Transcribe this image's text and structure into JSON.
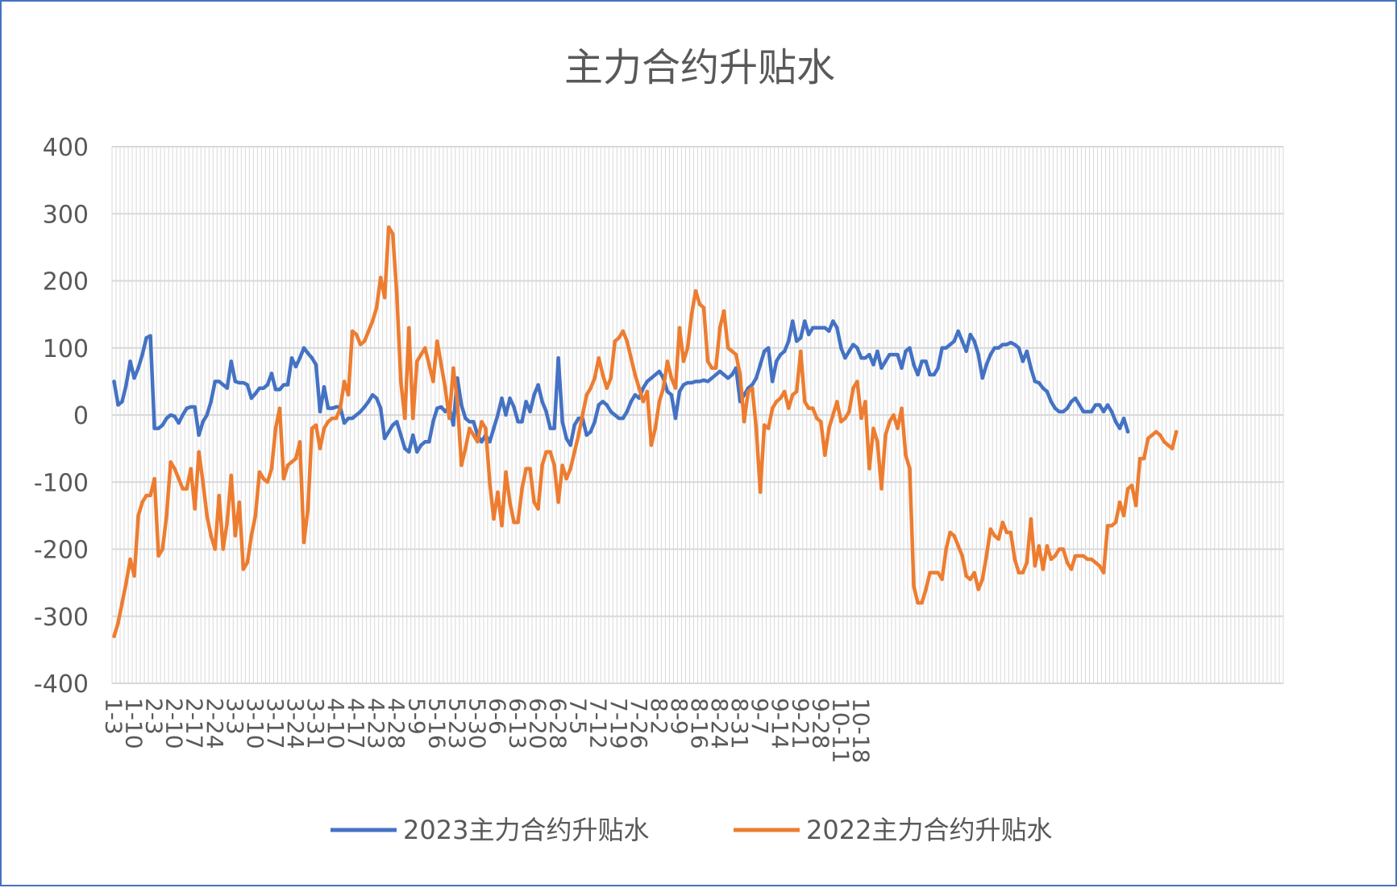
{
  "chart_data": {
    "type": "line",
    "title": "主力合约升贴水",
    "xlabel": "",
    "ylabel": "",
    "ylim": [
      -400,
      400
    ],
    "yticks": [
      400,
      300,
      200,
      100,
      0,
      -100,
      -200,
      -300,
      -400
    ],
    "grid": true,
    "legend_position": "bottom",
    "n_slots": 290,
    "x_tick_labels": [
      "1-3",
      "1-10",
      "2-3",
      "2-10",
      "2-17",
      "2-24",
      "3-3",
      "3-10",
      "3-17",
      "3-24",
      "3-31",
      "4-10",
      "4-17",
      "4-23",
      "4-28",
      "5-9",
      "5-16",
      "5-23",
      "5-30",
      "6-6",
      "6-13",
      "6-20",
      "6-28",
      "7-5",
      "7-12",
      "7-19",
      "7-26",
      "8-2",
      "8-9",
      "8-16",
      "8-24",
      "8-31",
      "9-7",
      "9-14",
      "9-21",
      "9-28",
      "10-11",
      "10-18"
    ],
    "series": [
      {
        "name": "2023主力合约升贴水",
        "color": "#4472c4",
        "values": [
          50,
          15,
          20,
          45,
          80,
          55,
          70,
          90,
          115,
          118,
          -20,
          -20,
          -15,
          -5,
          0,
          -2,
          -12,
          0,
          10,
          12,
          12,
          -30,
          -10,
          0,
          20,
          50,
          50,
          45,
          40,
          80,
          50,
          48,
          48,
          45,
          25,
          32,
          40,
          40,
          45,
          62,
          38,
          38,
          45,
          45,
          85,
          72,
          85,
          100,
          92,
          85,
          75,
          5,
          42,
          10,
          10,
          12,
          12,
          -12,
          -5,
          -5,
          0,
          5,
          12,
          20,
          30,
          25,
          10,
          -35,
          -25,
          -15,
          -10,
          -30,
          -50,
          -55,
          -30,
          -55,
          -45,
          -40,
          -40,
          -10,
          10,
          12,
          5,
          12,
          -15,
          55,
          15,
          -5,
          -10,
          -10,
          -30,
          -40,
          -30,
          -40,
          -20,
          0,
          25,
          0,
          25,
          12,
          -10,
          -10,
          20,
          5,
          30,
          45,
          20,
          5,
          -20,
          -20,
          85,
          -10,
          -35,
          -45,
          -15,
          -5,
          -5,
          -30,
          -25,
          -10,
          15,
          20,
          15,
          5,
          0,
          -5,
          -5,
          5,
          20,
          30,
          25,
          40,
          50,
          55,
          60,
          65,
          55,
          35,
          30,
          -5,
          35,
          45,
          48,
          48,
          50,
          50,
          52,
          50,
          55,
          60,
          65,
          60,
          55,
          60,
          70,
          20,
          30,
          40,
          45,
          55,
          75,
          95,
          100,
          50,
          80,
          90,
          95,
          110,
          140,
          110,
          115,
          140,
          120,
          130,
          130,
          130,
          130,
          125,
          140,
          130,
          100,
          85,
          95,
          105,
          100,
          85,
          85,
          90,
          75,
          95,
          70,
          80,
          90,
          90,
          90,
          70,
          95,
          100,
          75,
          60,
          80,
          80,
          60,
          60,
          70,
          100,
          100,
          105,
          110,
          125,
          110,
          95,
          120,
          110,
          90,
          55,
          75,
          90,
          100,
          100,
          105,
          105,
          108,
          105,
          100,
          80,
          95,
          70,
          50,
          48,
          40,
          35,
          20,
          10,
          5,
          5,
          10,
          20,
          25,
          15,
          5,
          5,
          5,
          15,
          15,
          5,
          15,
          5,
          -10,
          -20,
          -5,
          -25
        ]
      },
      {
        "name": "2022主力合约升贴水",
        "color": "#ed7d31",
        "values": [
          -330,
          -310,
          -280,
          -250,
          -215,
          -240,
          -150,
          -130,
          -120,
          -120,
          -95,
          -210,
          -200,
          -150,
          -70,
          -80,
          -95,
          -110,
          -110,
          -80,
          -140,
          -55,
          -100,
          -150,
          -180,
          -200,
          -120,
          -200,
          -160,
          -90,
          -180,
          -130,
          -230,
          -220,
          -180,
          -150,
          -85,
          -95,
          -100,
          -80,
          -20,
          10,
          -95,
          -75,
          -70,
          -65,
          -40,
          -190,
          -140,
          -20,
          -15,
          -50,
          -20,
          -10,
          -5,
          -5,
          10,
          50,
          30,
          125,
          120,
          105,
          110,
          125,
          140,
          160,
          205,
          175,
          280,
          270,
          180,
          50,
          -5,
          130,
          -5,
          80,
          90,
          100,
          75,
          50,
          110,
          75,
          40,
          -5,
          70,
          20,
          -75,
          -50,
          -20,
          -30,
          -40,
          -10,
          -20,
          -100,
          -155,
          -115,
          -165,
          -85,
          -130,
          -160,
          -160,
          -110,
          -80,
          -80,
          -130,
          -140,
          -75,
          -55,
          -55,
          -75,
          -130,
          -75,
          -95,
          -80,
          -55,
          -30,
          0,
          30,
          40,
          55,
          85,
          60,
          40,
          55,
          110,
          115,
          125,
          110,
          85,
          60,
          40,
          20,
          35,
          -45,
          -20,
          20,
          40,
          80,
          55,
          40,
          130,
          80,
          100,
          150,
          185,
          165,
          160,
          80,
          70,
          70,
          130,
          155,
          100,
          95,
          90,
          60,
          -10,
          35,
          40,
          -20,
          -115,
          -15,
          -20,
          10,
          20,
          25,
          35,
          10,
          30,
          35,
          95,
          20,
          10,
          10,
          -5,
          -10,
          -60,
          -20,
          0,
          20,
          -10,
          -5,
          5,
          40,
          50,
          -5,
          20,
          -80,
          -20,
          -40,
          -110,
          -30,
          -10,
          0,
          -20,
          10,
          -60,
          -80,
          -255,
          -280,
          -280,
          -260,
          -235,
          -235,
          -235,
          -245,
          -200,
          -175,
          -180,
          -195,
          -210,
          -240,
          -245,
          -235,
          -260,
          -245,
          -210,
          -170,
          -180,
          -185,
          -160,
          -175,
          -175,
          -215,
          -235,
          -235,
          -220,
          -155,
          -225,
          -195,
          -230,
          -195,
          -215,
          -210,
          -200,
          -200,
          -220,
          -230,
          -210,
          -210,
          -210,
          -215,
          -215,
          -220,
          -225,
          -235,
          -165,
          -165,
          -160,
          -130,
          -150,
          -110,
          -105,
          -135,
          -65,
          -65,
          -35,
          -30,
          -25,
          -30,
          -40,
          -45,
          -50,
          -25
        ]
      }
    ]
  }
}
